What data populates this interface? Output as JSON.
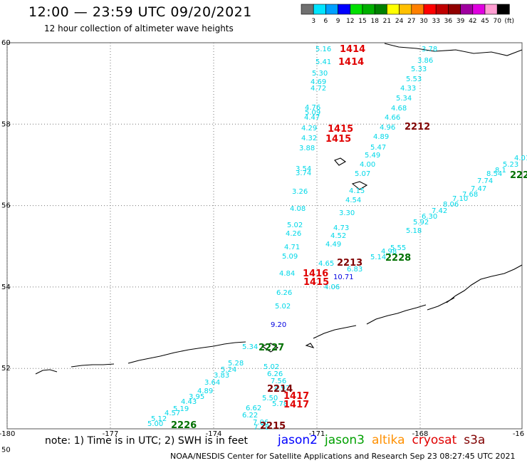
{
  "header": {
    "title": "12:00 — 23:59 UTC 09/20/2021",
    "subtitle": "12 hour collection of altimeter wave heights"
  },
  "colorbar": {
    "unit": "(ft)",
    "ticks": [
      "3",
      "6",
      "9",
      "12",
      "15",
      "18",
      "21",
      "24",
      "27",
      "30",
      "33",
      "36",
      "39",
      "42",
      "45",
      "70"
    ],
    "colors": [
      "#707070",
      "#00e5ff",
      "#00a0ff",
      "#0000ff",
      "#00e000",
      "#00b000",
      "#008000",
      "#ffff00",
      "#ffc000",
      "#ff8000",
      "#ff0000",
      "#c00000",
      "#900000",
      "#a000a0",
      "#e000e0",
      "#ff9ed2",
      "#000000"
    ]
  },
  "map": {
    "lat_labels": [
      "60",
      "58",
      "56",
      "54",
      "52",
      "50"
    ],
    "lon_labels": [
      "-180",
      "-177",
      "-174",
      "-171",
      "-168",
      "-16"
    ],
    "track_ids": [
      {
        "text": "1414",
        "color": "#e00000"
      },
      {
        "text": "1414",
        "color": "#e00000"
      },
      {
        "text": "1415",
        "color": "#e00000"
      },
      {
        "text": "1415",
        "color": "#e00000"
      },
      {
        "text": "2212",
        "color": "#800000"
      },
      {
        "text": "2213",
        "color": "#800000"
      },
      {
        "text": "2228",
        "color": "#007000"
      },
      {
        "text": "222",
        "color": "#007000"
      },
      {
        "text": "1416",
        "color": "#e00000"
      },
      {
        "text": "1415",
        "color": "#e00000"
      },
      {
        "text": "2227",
        "color": "#007000"
      },
      {
        "text": "2214",
        "color": "#800000"
      },
      {
        "text": "1417",
        "color": "#e00000"
      },
      {
        "text": "1417",
        "color": "#e00000"
      },
      {
        "text": "2226",
        "color": "#007000"
      },
      {
        "text": "2215",
        "color": "#800000"
      }
    ],
    "wave_values": [
      {
        "text": "5.16",
        "color": "#00d8e8"
      },
      {
        "text": "5.41",
        "color": "#00d8e8"
      },
      {
        "text": "5.30",
        "color": "#00d8e8"
      },
      {
        "text": "4.69",
        "color": "#00d8e8"
      },
      {
        "text": "4.72",
        "color": "#00d8e8"
      },
      {
        "text": "4.76",
        "color": "#00d8e8"
      },
      {
        "text": "5.09",
        "color": "#00d8e8"
      },
      {
        "text": "4.47",
        "color": "#00d8e8"
      },
      {
        "text": "4.29",
        "color": "#00d8e8"
      },
      {
        "text": "4.32",
        "color": "#00d8e8"
      },
      {
        "text": "3.88",
        "color": "#00d8e8"
      },
      {
        "text": "3.54",
        "color": "#00d8e8"
      },
      {
        "text": "3.74",
        "color": "#00d8e8"
      },
      {
        "text": "3.26",
        "color": "#00d8e8"
      },
      {
        "text": "4.08",
        "color": "#00d8e8"
      },
      {
        "text": "5.02",
        "color": "#00d8e8"
      },
      {
        "text": "4.26",
        "color": "#00d8e8"
      },
      {
        "text": "4.71",
        "color": "#00d8e8"
      },
      {
        "text": "5.09",
        "color": "#00d8e8"
      },
      {
        "text": "4.84",
        "color": "#00d8e8"
      },
      {
        "text": "6.26",
        "color": "#00d8e8"
      },
      {
        "text": "5.02",
        "color": "#00d8e8"
      },
      {
        "text": "9.20",
        "color": "#0000e0"
      },
      {
        "text": "5.34",
        "color": "#00d8e8"
      },
      {
        "text": "3.78",
        "color": "#00d8e8"
      },
      {
        "text": "3.86",
        "color": "#00d8e8"
      },
      {
        "text": "5.33",
        "color": "#00d8e8"
      },
      {
        "text": "5.53",
        "color": "#00d8e8"
      },
      {
        "text": "4.33",
        "color": "#00d8e8"
      },
      {
        "text": "5.34",
        "color": "#00d8e8"
      },
      {
        "text": "4.68",
        "color": "#00d8e8"
      },
      {
        "text": "4.66",
        "color": "#00d8e8"
      },
      {
        "text": "4.96",
        "color": "#00d8e8"
      },
      {
        "text": "4.89",
        "color": "#00d8e8"
      },
      {
        "text": "5.47",
        "color": "#00d8e8"
      },
      {
        "text": "5.49",
        "color": "#00d8e8"
      },
      {
        "text": "4.00",
        "color": "#00d8e8"
      },
      {
        "text": "5.07",
        "color": "#00d8e8"
      },
      {
        "text": "4.15",
        "color": "#00d8e8"
      },
      {
        "text": "4.54",
        "color": "#00d8e8"
      },
      {
        "text": "3.30",
        "color": "#00d8e8"
      },
      {
        "text": "4.73",
        "color": "#00d8e8"
      },
      {
        "text": "4.52",
        "color": "#00d8e8"
      },
      {
        "text": "4.49",
        "color": "#00d8e8"
      },
      {
        "text": "4.65",
        "color": "#00d8e8"
      },
      {
        "text": "6.83",
        "color": "#00d8e8"
      },
      {
        "text": "10.71",
        "color": "#0000e0"
      },
      {
        "text": "4.06",
        "color": "#00d8e8"
      },
      {
        "text": "4.01",
        "color": "#00d8e8"
      },
      {
        "text": "5.23",
        "color": "#00d8e8"
      },
      {
        "text": "8.1",
        "color": "#00d8e8"
      },
      {
        "text": "8.54",
        "color": "#00d8e8"
      },
      {
        "text": "7.74",
        "color": "#00d8e8"
      },
      {
        "text": "7.47",
        "color": "#00d8e8"
      },
      {
        "text": "7.68",
        "color": "#00d8e8"
      },
      {
        "text": "7.10",
        "color": "#00d8e8"
      },
      {
        "text": "8.06",
        "color": "#00d8e8"
      },
      {
        "text": "7.42",
        "color": "#00d8e8"
      },
      {
        "text": "6.30",
        "color": "#00d8e8"
      },
      {
        "text": "5.92",
        "color": "#00d8e8"
      },
      {
        "text": "5.18",
        "color": "#00d8e8"
      },
      {
        "text": "5.55",
        "color": "#00d8e8"
      },
      {
        "text": "4.98",
        "color": "#00d8e8"
      },
      {
        "text": "5.14",
        "color": "#00d8e8"
      },
      {
        "text": "5.28",
        "color": "#00d8e8"
      },
      {
        "text": "5.24",
        "color": "#00d8e8"
      },
      {
        "text": "3.83",
        "color": "#00d8e8"
      },
      {
        "text": "3.64",
        "color": "#00d8e8"
      },
      {
        "text": "4.89",
        "color": "#00d8e8"
      },
      {
        "text": "3.95",
        "color": "#00d8e8"
      },
      {
        "text": "4.43",
        "color": "#00d8e8"
      },
      {
        "text": "5.19",
        "color": "#00d8e8"
      },
      {
        "text": "4.57",
        "color": "#00d8e8"
      },
      {
        "text": "5.12",
        "color": "#00d8e8"
      },
      {
        "text": "5.00",
        "color": "#00d8e8"
      },
      {
        "text": "5.02",
        "color": "#00d8e8"
      },
      {
        "text": "6.26",
        "color": "#00d8e8"
      },
      {
        "text": "5.50",
        "color": "#00d8e8"
      },
      {
        "text": "5.78",
        "color": "#00d8e8"
      },
      {
        "text": "6.62",
        "color": "#00d8e8"
      },
      {
        "text": "6.22",
        "color": "#00d8e8"
      },
      {
        "text": "7.06",
        "color": "#00d8e8"
      },
      {
        "text": "7.78",
        "color": "#00d8e8"
      },
      {
        "text": "7.56",
        "color": "#00d8e8"
      },
      {
        "text": "4.92",
        "color": "#00d8e8"
      },
      {
        "text": "4.16",
        "color": "#00d8e8"
      }
    ]
  },
  "footer": {
    "note": "note:  1) Time is in UTC;  2) SWH is in feet",
    "legend": [
      {
        "name": "jason2",
        "color": "#0000ff"
      },
      {
        "name": "jason3",
        "color": "#00a000"
      },
      {
        "name": "altika",
        "color": "#ff9000"
      },
      {
        "name": "cryosat",
        "color": "#e00000"
      },
      {
        "name": "s3a",
        "color": "#800000"
      }
    ],
    "credit": "NOAA/NESDIS Center for Satellite Applications and Research     Sep 23 08:27:45 UTC 2021"
  }
}
